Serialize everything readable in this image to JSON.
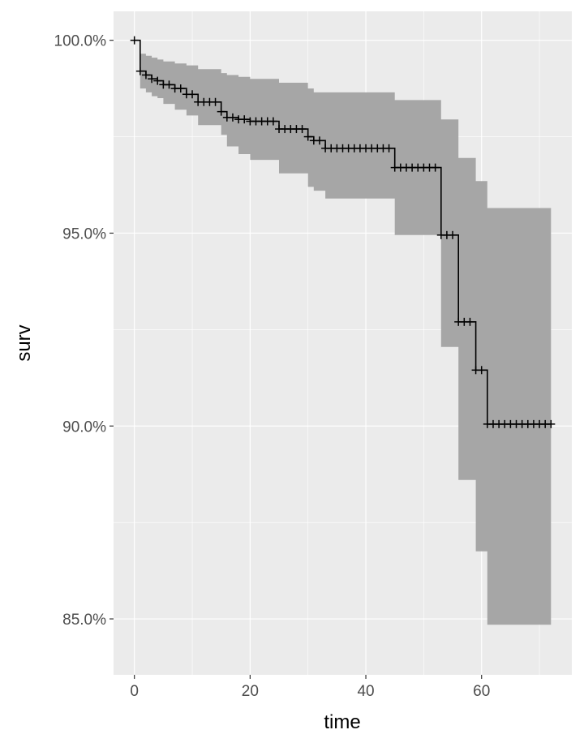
{
  "chart_data": {
    "type": "line",
    "subtype": "kaplan-meier step curve with confidence band and censor marks",
    "xlabel": "time",
    "ylabel": "surv",
    "xlim": [
      -3.6,
      75.6
    ],
    "ylim": [
      0.8355,
      1.0075
    ],
    "x_ticks": [
      0,
      20,
      40,
      60
    ],
    "x_tick_labels": [
      "0",
      "20",
      "40",
      "60"
    ],
    "y_ticks": [
      0.85,
      0.9,
      0.95,
      1.0
    ],
    "y_tick_labels": [
      "85.0%",
      "90.0%",
      "95.0%",
      "100.0%"
    ],
    "grid": true,
    "legend": "none",
    "colors": {
      "panel": "#ebebeb",
      "grid_major": "#ffffff",
      "band": "#a6a6a6",
      "line": "#000000",
      "tick_text": "#4d4d4d",
      "tick_mark": "#333333"
    },
    "steps": [
      {
        "time": 0,
        "surv": 1.0
      },
      {
        "time": 1,
        "surv": 0.992
      },
      {
        "time": 2,
        "surv": 0.991
      },
      {
        "time": 3,
        "surv": 0.99
      },
      {
        "time": 4,
        "surv": 0.9895
      },
      {
        "time": 5,
        "surv": 0.9885
      },
      {
        "time": 7,
        "surv": 0.9875
      },
      {
        "time": 9,
        "surv": 0.986
      },
      {
        "time": 11,
        "surv": 0.984
      },
      {
        "time": 15,
        "surv": 0.9815
      },
      {
        "time": 16,
        "surv": 0.98
      },
      {
        "time": 18,
        "surv": 0.9795
      },
      {
        "time": 20,
        "surv": 0.979
      },
      {
        "time": 25,
        "surv": 0.977
      },
      {
        "time": 30,
        "surv": 0.975
      },
      {
        "time": 31,
        "surv": 0.974
      },
      {
        "time": 33,
        "surv": 0.972
      },
      {
        "time": 45,
        "surv": 0.967
      },
      {
        "time": 53,
        "surv": 0.9495
      },
      {
        "time": 56,
        "surv": 0.927
      },
      {
        "time": 59,
        "surv": 0.9145
      },
      {
        "time": 61,
        "surv": 0.9005
      }
    ],
    "end_time": 72,
    "band": [
      {
        "time": 1,
        "lower": 0.9875,
        "upper": 0.9965
      },
      {
        "time": 2,
        "lower": 0.9865,
        "upper": 0.996
      },
      {
        "time": 3,
        "lower": 0.9855,
        "upper": 0.9955
      },
      {
        "time": 4,
        "lower": 0.985,
        "upper": 0.995
      },
      {
        "time": 5,
        "lower": 0.9835,
        "upper": 0.9945
      },
      {
        "time": 7,
        "lower": 0.982,
        "upper": 0.994
      },
      {
        "time": 9,
        "lower": 0.9805,
        "upper": 0.9935
      },
      {
        "time": 11,
        "lower": 0.978,
        "upper": 0.9925
      },
      {
        "time": 15,
        "lower": 0.9755,
        "upper": 0.9915
      },
      {
        "time": 16,
        "lower": 0.9725,
        "upper": 0.991
      },
      {
        "time": 18,
        "lower": 0.9705,
        "upper": 0.9905
      },
      {
        "time": 20,
        "lower": 0.969,
        "upper": 0.99
      },
      {
        "time": 25,
        "lower": 0.9655,
        "upper": 0.989
      },
      {
        "time": 30,
        "lower": 0.962,
        "upper": 0.9875
      },
      {
        "time": 31,
        "lower": 0.961,
        "upper": 0.9865
      },
      {
        "time": 33,
        "lower": 0.959,
        "upper": 0.9865
      },
      {
        "time": 45,
        "lower": 0.9495,
        "upper": 0.9845
      },
      {
        "time": 53,
        "lower": 0.9205,
        "upper": 0.9795
      },
      {
        "time": 56,
        "lower": 0.886,
        "upper": 0.9695
      },
      {
        "time": 59,
        "lower": 0.8675,
        "upper": 0.9635
      },
      {
        "time": 61,
        "lower": 0.8485,
        "upper": 0.9565
      }
    ],
    "band_end_time": 72,
    "censor_times": [
      0,
      1,
      2,
      3,
      4,
      5,
      6,
      7,
      8,
      9,
      10,
      11,
      12,
      13,
      14,
      15,
      16,
      17,
      18,
      19,
      20,
      21,
      22,
      23,
      24,
      25,
      26,
      27,
      28,
      29,
      30,
      31,
      32,
      33,
      34,
      35,
      36,
      37,
      38,
      39,
      40,
      41,
      42,
      43,
      44,
      45,
      46,
      47,
      48,
      49,
      50,
      51,
      52,
      53,
      54,
      55,
      56,
      57,
      58,
      59,
      60,
      61,
      62,
      63,
      64,
      65,
      66,
      67,
      68,
      69,
      70,
      71,
      72
    ]
  }
}
